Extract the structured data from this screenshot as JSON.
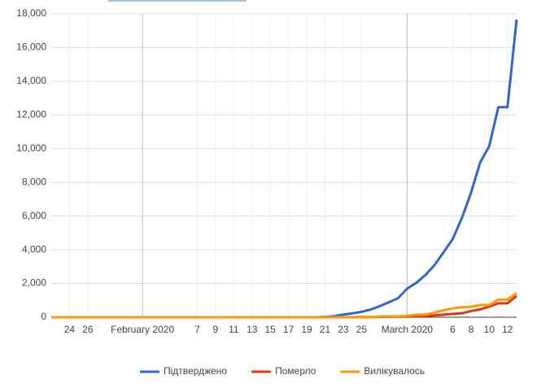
{
  "chart_data": {
    "type": "line",
    "x": [
      "2020-01-22",
      "2020-01-23",
      "2020-01-24",
      "2020-01-25",
      "2020-01-26",
      "2020-01-27",
      "2020-01-28",
      "2020-01-29",
      "2020-01-30",
      "2020-01-31",
      "2020-02-01",
      "2020-02-02",
      "2020-02-03",
      "2020-02-04",
      "2020-02-05",
      "2020-02-06",
      "2020-02-07",
      "2020-02-08",
      "2020-02-09",
      "2020-02-10",
      "2020-02-11",
      "2020-02-12",
      "2020-02-13",
      "2020-02-14",
      "2020-02-15",
      "2020-02-16",
      "2020-02-17",
      "2020-02-18",
      "2020-02-19",
      "2020-02-20",
      "2020-02-21",
      "2020-02-22",
      "2020-02-23",
      "2020-02-24",
      "2020-02-25",
      "2020-02-26",
      "2020-02-27",
      "2020-02-28",
      "2020-02-29",
      "2020-03-01",
      "2020-03-02",
      "2020-03-03",
      "2020-03-04",
      "2020-03-05",
      "2020-03-06",
      "2020-03-07",
      "2020-03-08",
      "2020-03-09",
      "2020-03-10",
      "2020-03-11",
      "2020-03-12",
      "2020-03-13"
    ],
    "series": [
      {
        "name": "Підтверджено",
        "color": "#3366cc",
        "values": [
          0,
          0,
          0,
          0,
          0,
          0,
          0,
          0,
          0,
          2,
          2,
          2,
          2,
          2,
          2,
          2,
          3,
          3,
          3,
          3,
          3,
          3,
          3,
          3,
          3,
          3,
          3,
          3,
          3,
          3,
          20,
          62,
          155,
          229,
          322,
          453,
          655,
          888,
          1128,
          1694,
          2036,
          2502,
          3089,
          3858,
          4636,
          5883,
          7375,
          9172,
          10149,
          12462,
          12462,
          17660
        ]
      },
      {
        "name": "Померло",
        "color": "#dc3912",
        "values": [
          0,
          0,
          0,
          0,
          0,
          0,
          0,
          0,
          0,
          0,
          0,
          0,
          0,
          0,
          0,
          0,
          0,
          0,
          0,
          0,
          0,
          0,
          0,
          0,
          0,
          0,
          0,
          0,
          0,
          0,
          1,
          2,
          3,
          7,
          10,
          12,
          17,
          21,
          29,
          34,
          52,
          79,
          107,
          148,
          197,
          233,
          366,
          463,
          631,
          827,
          827,
          1266
        ]
      },
      {
        "name": "Вилікувалось",
        "color": "#ff9900",
        "values": [
          0,
          0,
          0,
          0,
          0,
          0,
          0,
          0,
          0,
          0,
          0,
          0,
          0,
          0,
          0,
          0,
          0,
          0,
          0,
          0,
          0,
          0,
          0,
          0,
          0,
          0,
          0,
          0,
          0,
          0,
          0,
          1,
          2,
          1,
          1,
          3,
          45,
          46,
          46,
          83,
          149,
          160,
          276,
          414,
          523,
          589,
          622,
          724,
          724,
          1045,
          1045,
          1439
        ]
      }
    ],
    "xlim": [
      "2020-01-22",
      "2020-03-13"
    ],
    "xticks": [
      {
        "value": "2020-01-24",
        "label": "24"
      },
      {
        "value": "2020-01-26",
        "label": "26"
      },
      {
        "value": "2020-02-01",
        "label": "February 2020"
      },
      {
        "value": "2020-02-07",
        "label": "7"
      },
      {
        "value": "2020-02-09",
        "label": "9"
      },
      {
        "value": "2020-02-11",
        "label": "11"
      },
      {
        "value": "2020-02-13",
        "label": "13"
      },
      {
        "value": "2020-02-15",
        "label": "15"
      },
      {
        "value": "2020-02-17",
        "label": "17"
      },
      {
        "value": "2020-02-19",
        "label": "19"
      },
      {
        "value": "2020-02-21",
        "label": "21"
      },
      {
        "value": "2020-02-23",
        "label": "23"
      },
      {
        "value": "2020-02-25",
        "label": "25"
      },
      {
        "value": "2020-03-01",
        "label": "March 2020"
      },
      {
        "value": "2020-03-06",
        "label": "6"
      },
      {
        "value": "2020-03-08",
        "label": "8"
      },
      {
        "value": "2020-03-10",
        "label": "10"
      },
      {
        "value": "2020-03-12",
        "label": "12"
      }
    ],
    "ylim": [
      0,
      18000
    ],
    "yticks": [
      0,
      {
        "value": 2000,
        "label": "2,000"
      },
      {
        "value": 4000,
        "label": "4,000"
      },
      {
        "value": 6000,
        "label": "6,000"
      },
      {
        "value": 8000,
        "label": "8,000"
      },
      {
        "value": 10000,
        "label": "10,000"
      },
      {
        "value": 12000,
        "label": "12,000"
      },
      {
        "value": 14000,
        "label": "14,000"
      },
      {
        "value": 16000,
        "label": "16,000"
      },
      {
        "value": 18000,
        "label": "18,000"
      }
    ],
    "grid": true,
    "legend": "bottom"
  }
}
